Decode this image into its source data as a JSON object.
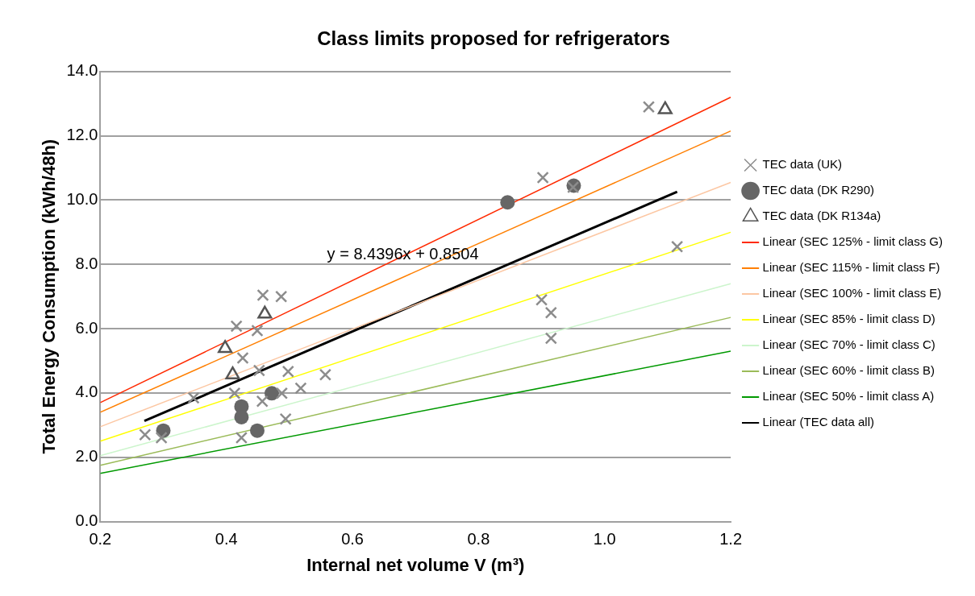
{
  "chart_data": {
    "type": "scatter",
    "title": "Class limits proposed for refrigerators",
    "xlabel": "Internal net volume V (m³)",
    "ylabel": "Total Energy Consumption (kWh/48h)",
    "xlim": [
      0.2,
      1.2
    ],
    "xticks": [
      {
        "value": 0.2,
        "label": "0.2"
      },
      {
        "value": 0.4,
        "label": "0.4"
      },
      {
        "value": 0.6,
        "label": "0.6"
      },
      {
        "value": 0.8,
        "label": "0.8"
      },
      {
        "value": 1.0,
        "label": "1.0"
      },
      {
        "value": 1.2,
        "label": "1.2"
      }
    ],
    "ylim": [
      0,
      14
    ],
    "yticks": [
      {
        "value": 0,
        "label": "0.0"
      },
      {
        "value": 2,
        "label": "2.0"
      },
      {
        "value": 4,
        "label": "4.0"
      },
      {
        "value": 6,
        "label": "6.0"
      },
      {
        "value": 8,
        "label": "8.0"
      },
      {
        "value": 10,
        "label": "10.0"
      },
      {
        "value": 12,
        "label": "12.0"
      },
      {
        "value": 14,
        "label": "14.0"
      }
    ],
    "grid": "y",
    "legend": "right",
    "annotations": [
      {
        "text": "y = 8.4396x + 0.8504",
        "x": 0.68,
        "y": 8.3
      }
    ],
    "series": [
      {
        "name": "TEC data (UK)",
        "marker": "cross",
        "color": "#8c8c8c",
        "x": [
          1.07,
          0.902,
          0.95,
          1.115,
          0.9,
          0.915,
          0.915,
          0.458,
          0.487,
          0.416,
          0.449,
          0.426,
          0.452,
          0.498,
          0.557,
          0.518,
          0.348,
          0.413,
          0.457,
          0.488,
          0.494,
          0.271,
          0.297,
          0.424
        ],
        "values": [
          12.9,
          10.7,
          10.4,
          8.55,
          6.9,
          6.5,
          5.7,
          7.04,
          7.0,
          6.08,
          5.94,
          5.09,
          4.7,
          4.67,
          4.57,
          4.15,
          3.85,
          3.99,
          3.74,
          3.99,
          3.19,
          2.7,
          2.61,
          2.61
        ]
      },
      {
        "name": "TEC data (DK R290)",
        "marker": "circle",
        "color": "#666666",
        "x": [
          0.3,
          0.424,
          0.424,
          0.449,
          0.472,
          0.846,
          0.951
        ],
        "values": [
          2.83,
          3.58,
          3.25,
          2.83,
          3.99,
          9.93,
          10.45
        ]
      },
      {
        "name": "TEC data (DK R134a)",
        "marker": "triangle",
        "color": "#555555",
        "x": [
          0.461,
          0.398,
          0.41,
          1.096
        ],
        "values": [
          6.46,
          5.39,
          4.57,
          12.82
        ]
      },
      {
        "name": "Linear (SEC 125% - limit class G)",
        "type": "line",
        "marker": "none",
        "color": "#ff2a00",
        "x": [
          0.2,
          1.2
        ],
        "values": [
          3.7,
          13.2
        ]
      },
      {
        "name": "Linear (SEC 115% - limit class F)",
        "type": "line",
        "marker": "none",
        "color": "#ff7f00",
        "x": [
          0.2,
          1.2
        ],
        "values": [
          3.4,
          12.15
        ]
      },
      {
        "name": "Linear (SEC 100% - limit class E)",
        "type": "line",
        "marker": "none",
        "color": "#fcc7a3",
        "x": [
          0.2,
          1.2
        ],
        "values": [
          2.95,
          10.55
        ]
      },
      {
        "name": "Linear (SEC 85% - limit class D)",
        "type": "line",
        "marker": "none",
        "color": "#ffff00",
        "x": [
          0.2,
          1.2
        ],
        "values": [
          2.5,
          9.0
        ]
      },
      {
        "name": "Linear (SEC 70% - limit class C)",
        "type": "line",
        "marker": "none",
        "color": "#ccf5cc",
        "x": [
          0.2,
          1.2
        ],
        "values": [
          2.05,
          7.4
        ]
      },
      {
        "name": "Linear (SEC 60% - limit class B)",
        "type": "line",
        "marker": "none",
        "color": "#9bbb59",
        "x": [
          0.2,
          1.2
        ],
        "values": [
          1.75,
          6.35
        ]
      },
      {
        "name": "Linear (SEC 50% - limit class A)",
        "type": "line",
        "marker": "none",
        "color": "#009900",
        "x": [
          0.2,
          1.2
        ],
        "values": [
          1.5,
          5.3
        ]
      },
      {
        "name": "Linear (TEC data all)",
        "type": "line",
        "marker": "none",
        "color": "#000000",
        "x": [
          0.27,
          1.115
        ],
        "values": [
          3.13,
          10.26
        ]
      }
    ]
  }
}
